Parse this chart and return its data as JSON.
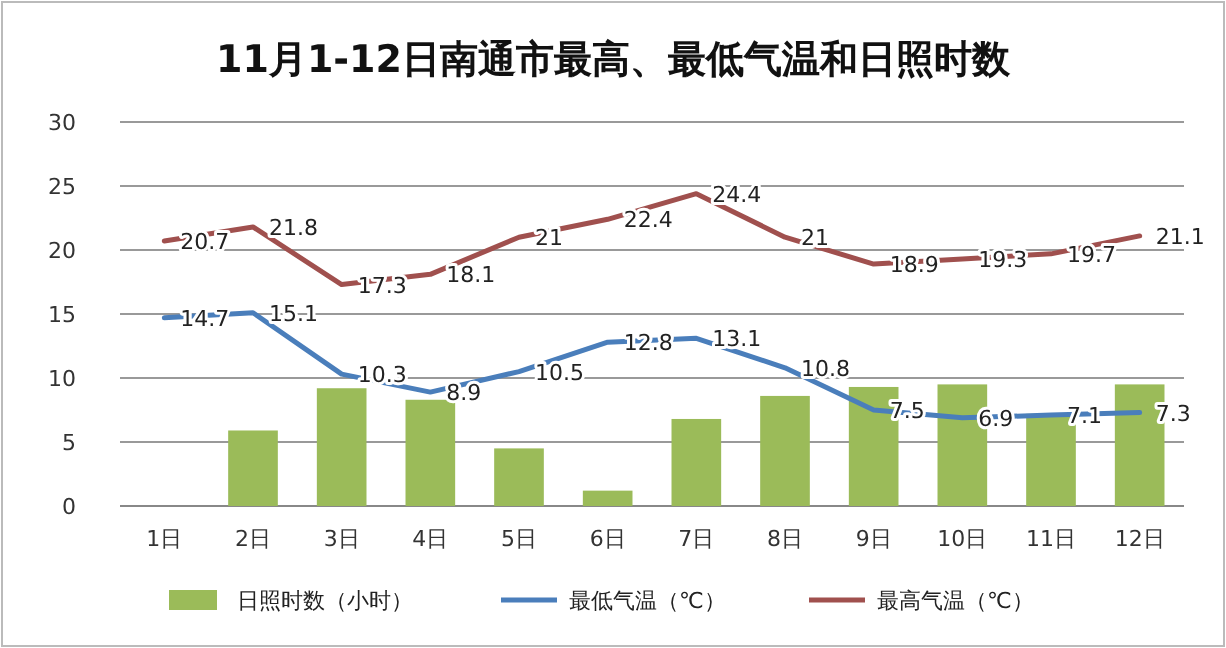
{
  "chart_data": {
    "type": "bar",
    "title": "11月1-12日南通市最高、最低气温和日照时数",
    "categories": [
      "1日",
      "2日",
      "3日",
      "4日",
      "5日",
      "6日",
      "7日",
      "8日",
      "9日",
      "10日",
      "11日",
      "12日"
    ],
    "series": [
      {
        "name": "日照时数（小时）",
        "color": "#9bbb59",
        "values": [
          0,
          5.9,
          9.2,
          8.3,
          4.5,
          1.2,
          6.8,
          8.6,
          9.3,
          9.5,
          7.2,
          9.5
        ]
      },
      {
        "name": "最低气温（℃）",
        "type": "line",
        "color": "#4a7ebb",
        "values": [
          14.7,
          15.1,
          10.3,
          8.9,
          10.5,
          12.8,
          13.1,
          10.8,
          7.5,
          6.9,
          7.1,
          7.3
        ],
        "value_labels": [
          "14.7",
          "15.1",
          "10.3",
          "8.9",
          "10.5",
          "12.8",
          "13.1",
          "10.8",
          "7.5",
          "6.9",
          "7.1",
          "7.3"
        ]
      },
      {
        "name": "最高气温（℃）",
        "type": "line",
        "color": "#a0504e",
        "values": [
          20.7,
          21.8,
          17.3,
          18.1,
          21,
          22.4,
          24.4,
          21,
          18.9,
          19.3,
          19.7,
          21.1
        ],
        "value_labels": [
          "20.7",
          "21.8",
          "17.3",
          "18.1",
          "21",
          "22.4",
          "24.4",
          "21",
          "18.9",
          "19.3",
          "19.7",
          "21.1"
        ]
      }
    ],
    "ylim": [
      0,
      30
    ],
    "yticks": [
      0,
      5,
      10,
      15,
      20,
      25,
      30
    ],
    "grid": "y",
    "legend": "bottom"
  }
}
